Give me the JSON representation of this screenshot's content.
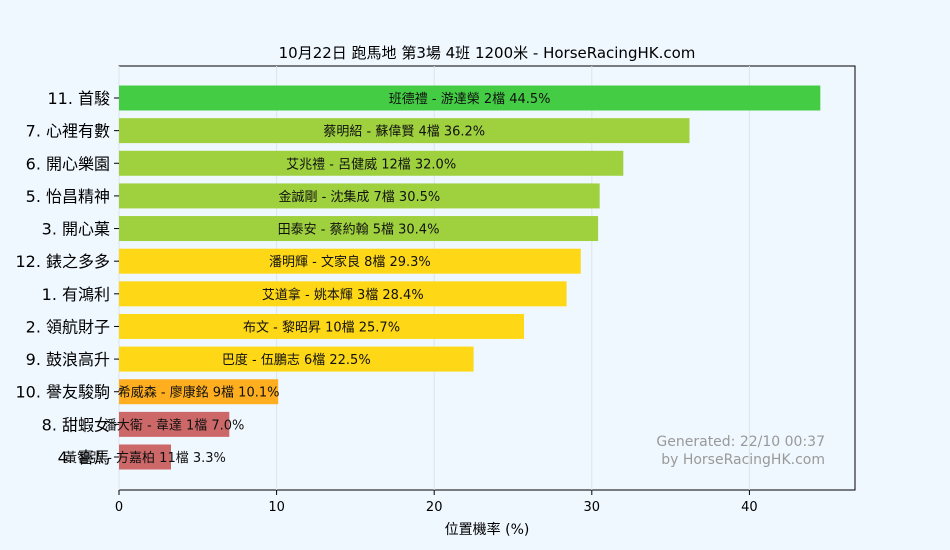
{
  "chart_data": {
    "type": "bar",
    "orientation": "horizontal",
    "title": "10月22日  跑馬地  第3場  4班  1200米 - HorseRacingHK.com",
    "xlabel": "位置機率 (%)",
    "ylabel": "",
    "xlim": [
      0,
      46.7
    ],
    "xticks": [
      0,
      10,
      20,
      30,
      40
    ],
    "grid": "vertical",
    "watermark": [
      "Generated: 22/10 00:37",
      "by HorseRacingHK.com"
    ],
    "bars": [
      {
        "label": "11. 首駿",
        "jockey_trainer": "班德禮 - 游達榮",
        "draw": "2檔",
        "value": 44.5,
        "color": "#44cc44"
      },
      {
        "label": "7. 心裡有數",
        "jockey_trainer": "蔡明紹 - 蘇偉賢",
        "draw": "4檔",
        "value": 36.2,
        "color": "#9fd13f"
      },
      {
        "label": "6. 開心樂園",
        "jockey_trainer": "艾兆禮 - 呂健威",
        "draw": "12檔",
        "value": 32.0,
        "color": "#9fd13f"
      },
      {
        "label": "5. 怡昌精神",
        "jockey_trainer": "金誠剛 - 沈集成",
        "draw": "7檔",
        "value": 30.5,
        "color": "#9fd13f"
      },
      {
        "label": "3. 開心菓",
        "jockey_trainer": "田泰安 - 蔡約翰",
        "draw": "5檔",
        "value": 30.4,
        "color": "#9fd13f"
      },
      {
        "label": "12. 錶之多多",
        "jockey_trainer": "潘明輝 - 文家良",
        "draw": "8檔",
        "value": 29.3,
        "color": "#fed816"
      },
      {
        "label": "1. 有鴻利",
        "jockey_trainer": "艾道拿 - 姚本輝",
        "draw": "3檔",
        "value": 28.4,
        "color": "#fed816"
      },
      {
        "label": "2. 領航財子",
        "jockey_trainer": "布文 - 黎昭昇",
        "draw": "10檔",
        "value": 25.7,
        "color": "#fed816"
      },
      {
        "label": "9. 鼓浪高升",
        "jockey_trainer": "巴度 - 伍鵬志",
        "draw": "6檔",
        "value": 22.5,
        "color": "#fed816"
      },
      {
        "label": "10. 譽友駿駒",
        "jockey_trainer": "希威森 - 廖康銘",
        "draw": "9檔",
        "value": 10.1,
        "color": "#feae1f"
      },
      {
        "label": "8. 甜蝦女",
        "jockey_trainer": "潘大衛 - 韋達",
        "draw": "1檔",
        "value": 7.0,
        "color": "#cd6868"
      },
      {
        "label": "4. 喜馬",
        "jockey_trainer": "黃智弘 - 方嘉柏",
        "draw": "11檔",
        "value": 3.3,
        "color": "#cd6868"
      }
    ]
  }
}
